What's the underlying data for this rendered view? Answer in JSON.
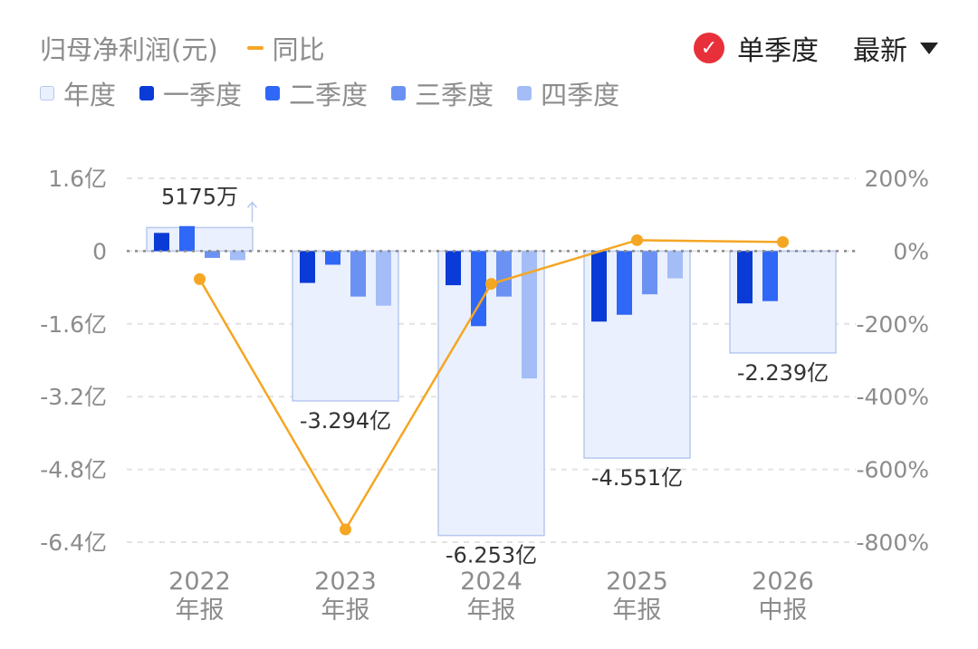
{
  "header": {
    "title": "归母净利润(元)",
    "yoy_label": "同比",
    "single_quarter_label": "单季度",
    "latest_label": "最新"
  },
  "legend": [
    {
      "label": "年度",
      "color": "#eaf0fd"
    },
    {
      "label": "一季度",
      "color": "#0a3bd6"
    },
    {
      "label": "二季度",
      "color": "#2f67f6"
    },
    {
      "label": "三季度",
      "color": "#6b92f3"
    },
    {
      "label": "四季度",
      "color": "#a4bdf6"
    }
  ],
  "colors": {
    "yoy_line": "#f5a623",
    "annual_fill": "#eaf0fd",
    "annual_stroke": "#b8c9ef"
  },
  "chart_data": {
    "type": "bar",
    "categories": [
      "2022\n年报",
      "2023\n年报",
      "2024\n年报",
      "2025\n年报",
      "2026\n中报"
    ],
    "annual": [
      0.5175,
      -3.294,
      -6.253,
      -4.551,
      -2.239
    ],
    "annual_labels": [
      "5175万",
      "-3.294亿",
      "-6.253亿",
      "-4.551亿",
      "-2.239亿"
    ],
    "series": [
      {
        "name": "一季度",
        "values": [
          0.4,
          -0.7,
          -0.75,
          -1.55,
          -1.15
        ]
      },
      {
        "name": "二季度",
        "values": [
          0.55,
          -0.3,
          -1.65,
          -1.4,
          -1.1
        ]
      },
      {
        "name": "三季度",
        "values": [
          -0.15,
          -1.0,
          -1.0,
          -0.95,
          null
        ]
      },
      {
        "name": "四季度",
        "values": [
          -0.2,
          -1.2,
          -2.8,
          -0.6,
          null
        ]
      }
    ],
    "yoy": {
      "name": "同比",
      "values": [
        -77,
        -765,
        -90,
        30,
        25
      ]
    },
    "y_left": {
      "ticks": [
        1.6,
        0,
        -1.6,
        -3.2,
        -4.8,
        -6.4
      ],
      "tick_labels": [
        "1.6亿",
        "0",
        "-1.6亿",
        "-3.2亿",
        "-4.8亿",
        "-6.4亿"
      ],
      "ylim": [
        -6.4,
        1.6
      ]
    },
    "y_right": {
      "ticks": [
        200,
        0,
        -200,
        -400,
        -600,
        -800
      ],
      "tick_labels": [
        "200%",
        "0%",
        "-200%",
        "-400%",
        "-600%",
        "-800%"
      ],
      "ylim": [
        -800,
        200
      ]
    },
    "grid": true
  }
}
